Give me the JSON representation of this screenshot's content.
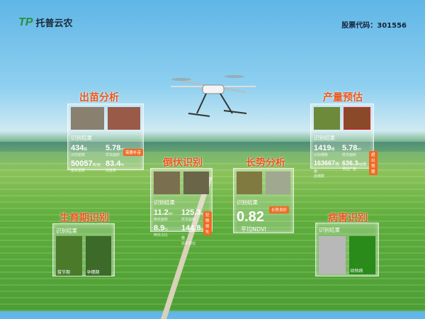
{
  "header": {
    "brand_mark": "TP",
    "brand_name": "托普云农",
    "stock_code": "股票代码：301556"
  },
  "emergence": {
    "title": "出苗分析",
    "result_label": "识别结果",
    "badge": "需要补苗",
    "metrics": [
      {
        "value": "434",
        "unit": "株",
        "label": "识别苗数"
      },
      {
        "value": "5.78",
        "unit": "m²",
        "label": "样本面积"
      },
      {
        "value": "50057",
        "unit": "株/亩",
        "label": "基本苗数"
      },
      {
        "value": "83.4",
        "unit": "%",
        "label": "出苗率"
      }
    ]
  },
  "yield": {
    "title": "产量预估",
    "result_label": "识别结果",
    "badge": "超出预期",
    "metrics": [
      {
        "value": "1419",
        "unit": "穗",
        "label": "识别穗数"
      },
      {
        "value": "5.78",
        "unit": "m²",
        "label": "样本面积"
      },
      {
        "value": "163667",
        "unit": "穗/亩",
        "label": "亩穗数"
      },
      {
        "value": "636.3",
        "unit": "kg/亩",
        "label": "预估产量"
      }
    ]
  },
  "lodging": {
    "title": "倒伏识别",
    "result_label": "识别结果",
    "badge": "轻微损失",
    "metrics": [
      {
        "value": "11.2",
        "unit": "m²",
        "label": "倒伏面积"
      },
      {
        "value": "125.3",
        "unit": "m²",
        "label": "样本面积"
      },
      {
        "value": "8.9",
        "unit": "%",
        "label": "倒伏占比"
      },
      {
        "value": "144.8",
        "unit": "kg/亩",
        "label": "损失预估"
      }
    ]
  },
  "growth": {
    "title": "长势分析",
    "result_label": "识别结果",
    "badge": "长势良好",
    "value": "0.82",
    "value_label": "平均NDVI"
  },
  "stage": {
    "title": "生育期识别",
    "result_label": "识别结果",
    "stages": [
      "拔节期",
      "孕穗期"
    ]
  },
  "disease": {
    "title": "病害识别",
    "result_label": "识别结果",
    "disease_name": "纹枯病"
  }
}
